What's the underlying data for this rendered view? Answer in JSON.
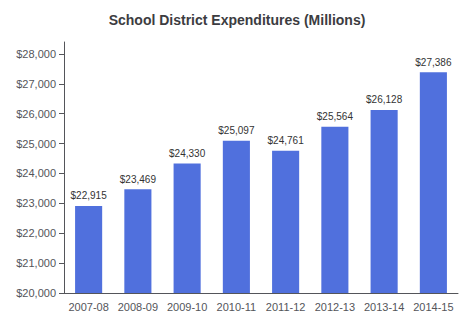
{
  "chart_data": {
    "type": "bar",
    "title": "School District Expenditures (Millions)",
    "categories": [
      "2007-08",
      "2008-09",
      "2009-10",
      "2010-11",
      "2011-12",
      "2012-13",
      "2013-14",
      "2014-15"
    ],
    "values": [
      22915,
      23469,
      24330,
      25097,
      24761,
      25564,
      26128,
      27386
    ],
    "value_labels": [
      "$22,915",
      "$23,469",
      "$24,330",
      "$25,097",
      "$24,761",
      "$25,564",
      "$26,128",
      "$27,386"
    ],
    "data_labels": true,
    "ylim": [
      20000,
      28400
    ],
    "yticks": [
      {
        "value": 20000,
        "label": "$20,000"
      },
      {
        "value": 21000,
        "label": "$21,000"
      },
      {
        "value": 22000,
        "label": "$22,000"
      },
      {
        "value": 23000,
        "label": "$23,000"
      },
      {
        "value": 24000,
        "label": "$24,000"
      },
      {
        "value": 25000,
        "label": "$25,000"
      },
      {
        "value": 26000,
        "label": "$26,000"
      },
      {
        "value": 27000,
        "label": "$27,000"
      },
      {
        "value": 28000,
        "label": "$28,000"
      }
    ],
    "grid": false
  }
}
